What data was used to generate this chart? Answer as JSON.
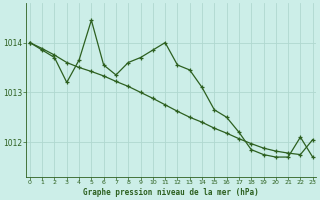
{
  "xlabel": "Graphe pression niveau de la mer (hPa)",
  "background_color": "#cceee8",
  "grid_color": "#b0d8d0",
  "line_color": "#2d6020",
  "x_ticks": [
    0,
    1,
    2,
    3,
    4,
    5,
    6,
    7,
    8,
    9,
    10,
    11,
    12,
    13,
    14,
    15,
    16,
    17,
    18,
    19,
    20,
    21,
    22,
    23
  ],
  "yticks": [
    1012,
    1013,
    1014
  ],
  "ylim": [
    1011.3,
    1014.8
  ],
  "xlim": [
    -0.3,
    23.3
  ],
  "raw_x": [
    0,
    1,
    2,
    3,
    4,
    5,
    6,
    7,
    8,
    9,
    10,
    11,
    12,
    13,
    14,
    15,
    16,
    17,
    18,
    19,
    20,
    21,
    22,
    23
  ],
  "raw_y": [
    1014.0,
    1013.85,
    1013.7,
    1013.2,
    1013.65,
    1014.45,
    1013.55,
    1013.35,
    1013.6,
    1013.7,
    1013.85,
    1014.0,
    1013.55,
    1013.45,
    1013.1,
    1012.65,
    1012.5,
    1012.2,
    1011.85,
    1011.75,
    1011.7,
    1011.7,
    1012.1,
    1011.7
  ],
  "smooth_x": [
    0,
    1,
    2,
    3,
    4,
    5,
    6,
    7,
    8,
    9,
    10,
    11,
    12,
    13,
    14,
    15,
    16,
    17,
    18,
    19,
    20,
    21,
    22,
    23
  ],
  "smooth_y": [
    1014.0,
    1013.88,
    1013.75,
    1013.6,
    1013.5,
    1013.42,
    1013.33,
    1013.22,
    1013.12,
    1013.0,
    1012.88,
    1012.75,
    1012.62,
    1012.5,
    1012.4,
    1012.28,
    1012.18,
    1012.07,
    1011.97,
    1011.88,
    1011.82,
    1011.78,
    1011.75,
    1012.05
  ]
}
